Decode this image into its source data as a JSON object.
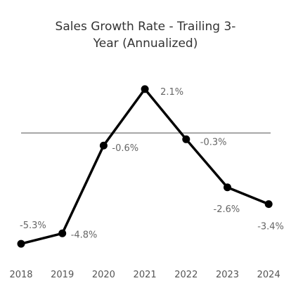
{
  "chart_data": {
    "type": "line",
    "title_lines": [
      "Sales Growth Rate - Trailing 3-",
      "Year (Annualized)"
    ],
    "categories": [
      "2018",
      "2019",
      "2020",
      "2021",
      "2022",
      "2023",
      "2024"
    ],
    "values": [
      -5.3,
      -4.8,
      -0.6,
      2.1,
      -0.3,
      -2.6,
      -3.4
    ],
    "data_labels": [
      "-5.3%",
      "-4.8%",
      "-0.6%",
      "2.1%",
      "-0.3%",
      "-2.6%",
      "-3.4%"
    ],
    "ylim": [
      -5.9,
      2.7
    ],
    "zero_line": true,
    "grid": false,
    "line_color": "#000000",
    "zero_line_color": "#888888"
  }
}
